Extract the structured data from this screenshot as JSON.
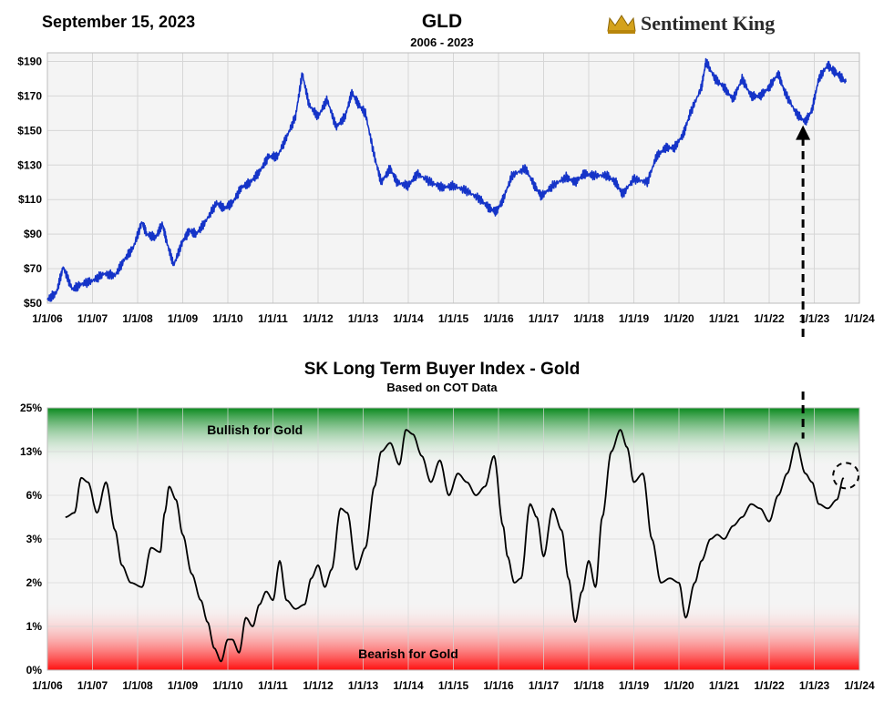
{
  "header": {
    "date": "September 15, 2023",
    "brand": "Sentiment King",
    "brand_icon": "crown-icon"
  },
  "colors": {
    "price_line": "#1534c8",
    "index_line": "#000000",
    "bullish_green": "#0a8a1e",
    "bearish_red": "#ff1010",
    "plot_bg": "#f4f4f4",
    "grid": "#d6d6d6"
  },
  "chart_data": [
    {
      "type": "line",
      "title": "GLD",
      "subtitle": "2006 - 2023",
      "ylim": [
        50,
        195
      ],
      "yticks": [
        50,
        70,
        90,
        110,
        130,
        150,
        170,
        190
      ],
      "ytick_labels": [
        "$50",
        "$70",
        "$90",
        "$110",
        "$130",
        "$150",
        "$170",
        "$190"
      ],
      "xlim": [
        2006,
        2024
      ],
      "xtick_labels": [
        "1/1/06",
        "1/1/07",
        "1/1/08",
        "1/1/09",
        "1/1/10",
        "1/1/11",
        "1/1/12",
        "1/1/13",
        "1/1/14",
        "1/1/15",
        "1/1/16",
        "1/1/17",
        "1/1/18",
        "1/1/19",
        "1/1/20",
        "1/1/21",
        "1/1/22",
        "1/1/23",
        "1/1/24"
      ],
      "grid": true,
      "series": [
        {
          "x": [
            2006.0,
            2006.2,
            2006.35,
            2006.55,
            2006.75,
            2007.0,
            2007.25,
            2007.5,
            2007.7,
            2007.9,
            2008.1,
            2008.2,
            2008.4,
            2008.55,
            2008.65,
            2008.8,
            2009.0,
            2009.15,
            2009.3,
            2009.5,
            2009.75,
            2009.92,
            2010.1,
            2010.3,
            2010.5,
            2010.7,
            2010.9,
            2011.1,
            2011.3,
            2011.5,
            2011.65,
            2011.8,
            2012.0,
            2012.2,
            2012.4,
            2012.6,
            2012.75,
            2012.9,
            2013.05,
            2013.25,
            2013.4,
            2013.6,
            2013.75,
            2014.0,
            2014.2,
            2014.5,
            2014.75,
            2015.0,
            2015.3,
            2015.6,
            2015.8,
            2015.95,
            2016.1,
            2016.3,
            2016.6,
            2016.8,
            2016.95,
            2017.2,
            2017.5,
            2017.7,
            2017.9,
            2018.1,
            2018.4,
            2018.6,
            2018.75,
            2019.0,
            2019.3,
            2019.5,
            2019.7,
            2019.9,
            2020.1,
            2020.25,
            2020.5,
            2020.6,
            2020.8,
            2021.0,
            2021.2,
            2021.4,
            2021.6,
            2021.8,
            2022.0,
            2022.2,
            2022.35,
            2022.6,
            2022.8,
            2022.95,
            2023.1,
            2023.3,
            2023.4,
            2023.55,
            2023.7
          ],
          "y": [
            52,
            56,
            71,
            58,
            61,
            63,
            67,
            66,
            75,
            82,
            97,
            90,
            88,
            96,
            85,
            72,
            86,
            92,
            90,
            97,
            108,
            105,
            108,
            117,
            120,
            126,
            135,
            135,
            146,
            158,
            183,
            165,
            158,
            168,
            152,
            158,
            172,
            165,
            160,
            135,
            120,
            128,
            120,
            118,
            125,
            120,
            117,
            118,
            115,
            110,
            105,
            103,
            110,
            124,
            128,
            118,
            112,
            118,
            123,
            120,
            125,
            124,
            124,
            120,
            113,
            122,
            120,
            135,
            140,
            140,
            148,
            160,
            175,
            190,
            180,
            175,
            168,
            180,
            170,
            170,
            175,
            183,
            172,
            160,
            155,
            162,
            180,
            188,
            185,
            182,
            178
          ]
        }
      ]
    },
    {
      "type": "line",
      "title": "SK Long Term Buyer Index - Gold",
      "subtitle": "Based on COT Data",
      "ylim": [
        0,
        6
      ],
      "ytick_labels": [
        "0%",
        "1%",
        "2%",
        "3%",
        "6%",
        "13%",
        "25%"
      ],
      "xlim": [
        2006,
        2024
      ],
      "xtick_labels": [
        "1/1/06",
        "1/1/07",
        "1/1/08",
        "1/1/09",
        "1/1/10",
        "1/1/11",
        "1/1/12",
        "1/1/13",
        "1/1/14",
        "1/1/15",
        "1/1/16",
        "1/1/17",
        "1/1/18",
        "1/1/19",
        "1/1/20",
        "1/1/21",
        "1/1/22",
        "1/1/23",
        "1/1/24"
      ],
      "annotations": [
        "Bullish for Gold",
        "Bearish for Gold"
      ],
      "grid": true,
      "series": [
        {
          "x": [
            2006.4,
            2006.6,
            2006.75,
            2006.9,
            2007.1,
            2007.3,
            2007.5,
            2007.65,
            2007.85,
            2008.1,
            2008.3,
            2008.5,
            2008.6,
            2008.7,
            2008.85,
            2009.0,
            2009.2,
            2009.4,
            2009.55,
            2009.7,
            2009.85,
            2010.0,
            2010.1,
            2010.25,
            2010.4,
            2010.55,
            2010.7,
            2010.85,
            2011.0,
            2011.15,
            2011.3,
            2011.5,
            2011.7,
            2011.85,
            2012.0,
            2012.15,
            2012.3,
            2012.5,
            2012.65,
            2012.85,
            2013.05,
            2013.25,
            2013.4,
            2013.6,
            2013.8,
            2013.95,
            2014.1,
            2014.3,
            2014.5,
            2014.7,
            2014.9,
            2015.1,
            2015.3,
            2015.5,
            2015.7,
            2015.9,
            2016.1,
            2016.2,
            2016.35,
            2016.5,
            2016.7,
            2016.85,
            2017.0,
            2017.2,
            2017.4,
            2017.55,
            2017.7,
            2017.85,
            2018.0,
            2018.15,
            2018.3,
            2018.5,
            2018.7,
            2018.85,
            2019.0,
            2019.2,
            2019.4,
            2019.6,
            2019.8,
            2020.0,
            2020.15,
            2020.35,
            2020.5,
            2020.7,
            2020.85,
            2021.0,
            2021.2,
            2021.4,
            2021.6,
            2021.8,
            2022.0,
            2022.2,
            2022.4,
            2022.6,
            2022.8,
            2022.95,
            2023.1,
            2023.3,
            2023.5,
            2023.65
          ],
          "y": [
            3.5,
            3.6,
            4.4,
            4.3,
            3.6,
            4.3,
            3.2,
            2.4,
            2.0,
            1.9,
            2.8,
            2.7,
            3.6,
            4.2,
            3.9,
            3.1,
            2.2,
            1.6,
            1.1,
            0.5,
            0.2,
            0.7,
            0.7,
            0.4,
            1.2,
            1.0,
            1.5,
            1.8,
            1.6,
            2.5,
            1.6,
            1.4,
            1.5,
            2.1,
            2.4,
            1.9,
            2.3,
            3.7,
            3.6,
            2.3,
            2.8,
            4.2,
            5.0,
            5.2,
            4.7,
            5.5,
            5.4,
            4.9,
            4.3,
            4.8,
            4.0,
            4.5,
            4.3,
            4.0,
            4.2,
            4.9,
            3.3,
            2.6,
            2.0,
            2.1,
            3.8,
            3.5,
            2.6,
            3.7,
            3.2,
            2.1,
            1.1,
            1.8,
            2.5,
            1.9,
            3.5,
            5.0,
            5.5,
            5.1,
            4.3,
            4.5,
            3.0,
            2.0,
            2.1,
            2.0,
            1.2,
            2.0,
            2.5,
            3.0,
            3.1,
            3.0,
            3.3,
            3.5,
            3.8,
            3.7,
            3.4,
            4.0,
            4.5,
            5.2,
            4.5,
            4.3,
            3.8,
            3.7,
            3.9,
            4.4
          ]
        }
      ]
    }
  ]
}
